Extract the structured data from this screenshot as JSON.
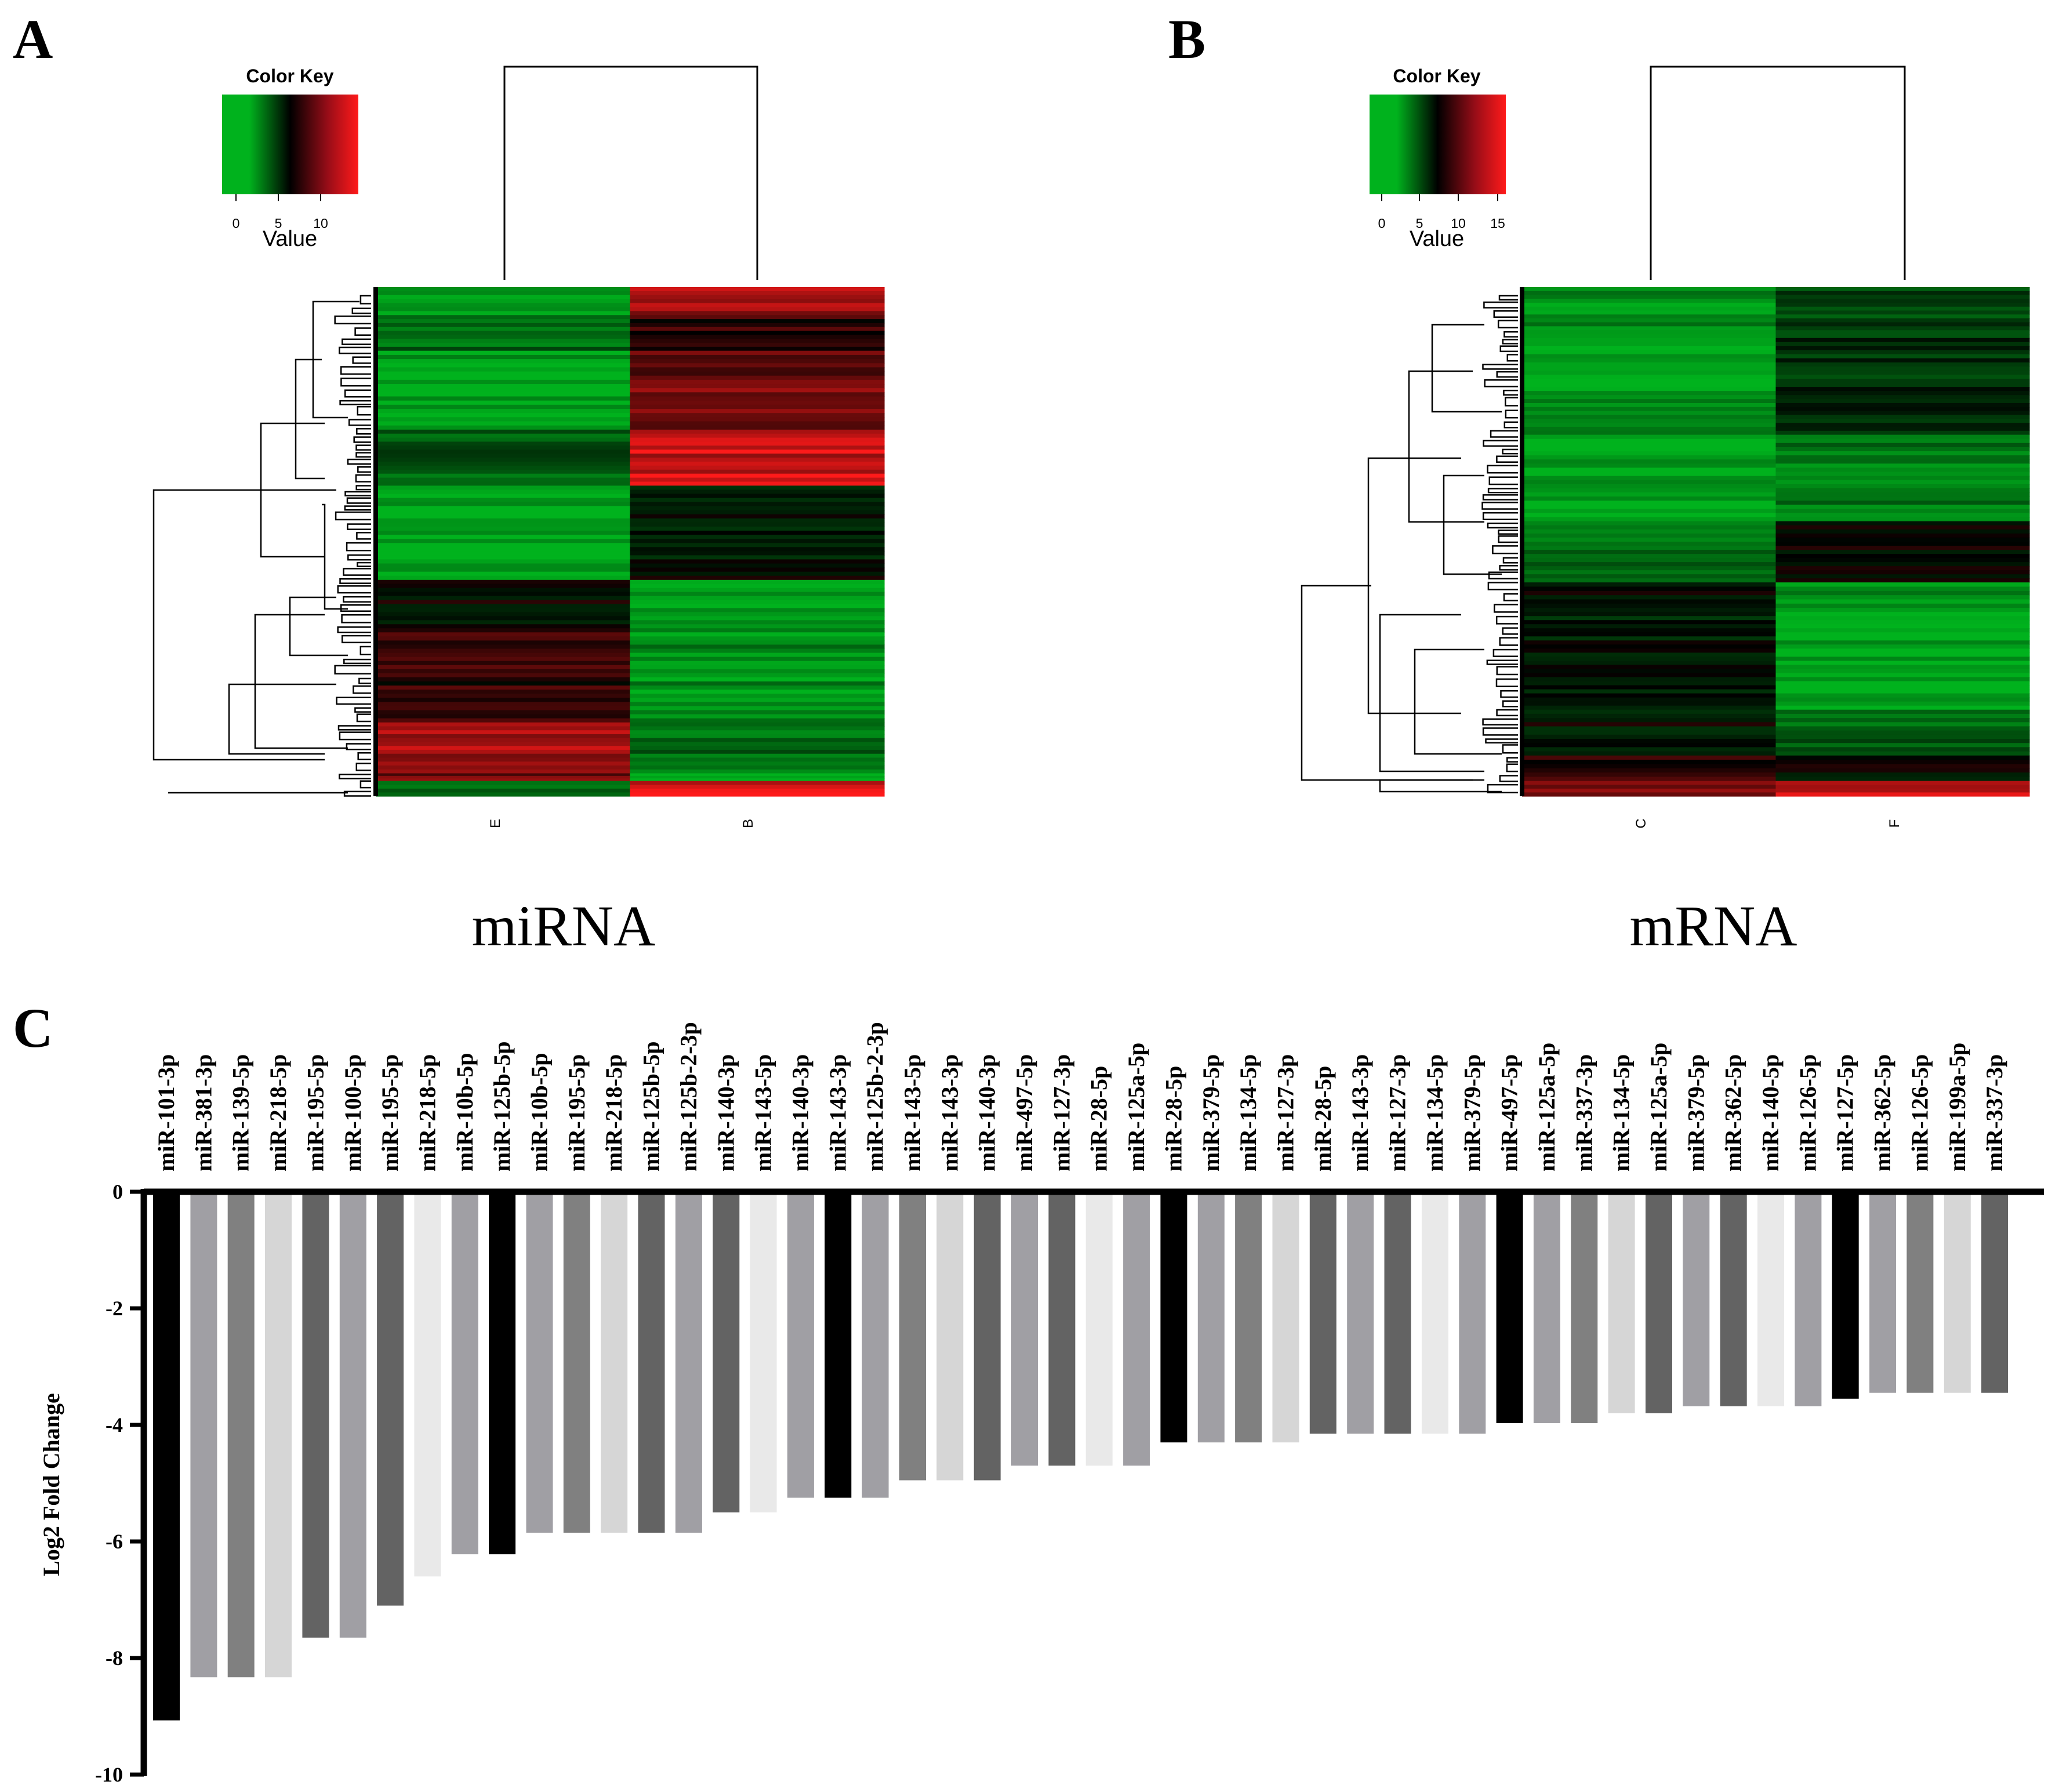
{
  "panels": {
    "a": {
      "letter": "A",
      "caption": "miRNA",
      "color_key": {
        "title": "Color Key",
        "xlabel": "Value",
        "ticks": [
          "0",
          "5",
          "10"
        ]
      },
      "columns": [
        "E",
        "B"
      ]
    },
    "b": {
      "letter": "B",
      "caption": "mRNA",
      "color_key": {
        "title": "Color Key",
        "xlabel": "Value",
        "ticks": [
          "0",
          "5",
          "10",
          "15"
        ]
      },
      "columns": [
        "C",
        "F"
      ]
    },
    "c": {
      "letter": "C"
    }
  },
  "colors": {
    "heat_low": "#00b21d",
    "heat_mid": "#000000",
    "heat_high": "#ff1a1a",
    "bar_shades": [
      "#000000",
      "#a09fa4",
      "#808080",
      "#d6d6d6",
      "#636363",
      "#e9e9e9"
    ]
  },
  "chart_data": [
    {
      "type": "heatmap",
      "panel": "A",
      "columns": [
        "E",
        "B"
      ],
      "color_scale": {
        "min": 0,
        "max": 14,
        "low": "#00b21d",
        "mid": "#000000",
        "high": "#ff1a1a"
      },
      "cluster_blocks": [
        {
          "fraction": 0.055,
          "values": [
            1.5,
            11.5
          ]
        },
        {
          "fraction": 0.07,
          "values": [
            3.0,
            8.0
          ]
        },
        {
          "fraction": 0.155,
          "values": [
            0.5,
            10.0
          ]
        },
        {
          "fraction": 0.11,
          "values": [
            3.5,
            12.5
          ]
        },
        {
          "fraction": 0.185,
          "values": [
            0.5,
            6.5
          ]
        },
        {
          "fraction": 0.095,
          "values": [
            7.0,
            0.5
          ]
        },
        {
          "fraction": 0.185,
          "values": [
            8.0,
            1.5
          ]
        },
        {
          "fraction": 0.1,
          "values": [
            11.5,
            3.0
          ]
        },
        {
          "fraction": 0.015,
          "values": [
            10.0,
            0.5
          ]
        },
        {
          "fraction": 0.03,
          "values": [
            3.0,
            12.5
          ]
        }
      ]
    },
    {
      "type": "heatmap",
      "panel": "B",
      "columns": [
        "C",
        "F"
      ],
      "color_scale": {
        "min": 0,
        "max": 15,
        "low": "#00b21d",
        "mid": "#000000",
        "high": "#ff1a1a"
      },
      "cluster_blocks": [
        {
          "fraction": 0.1,
          "values": [
            1.5,
            4.5
          ]
        },
        {
          "fraction": 0.12,
          "values": [
            0.5,
            5.5
          ]
        },
        {
          "fraction": 0.07,
          "values": [
            2.5,
            6.5
          ]
        },
        {
          "fraction": 0.17,
          "values": [
            0.5,
            2.5
          ]
        },
        {
          "fraction": 0.12,
          "values": [
            3.0,
            7.5
          ]
        },
        {
          "fraction": 0.05,
          "values": [
            7.5,
            2.0
          ]
        },
        {
          "fraction": 0.2,
          "values": [
            6.5,
            0.5
          ]
        },
        {
          "fraction": 0.09,
          "values": [
            7.0,
            3.5
          ]
        },
        {
          "fraction": 0.05,
          "values": [
            9.0,
            7.0
          ]
        },
        {
          "fraction": 0.03,
          "values": [
            11.0,
            13.0
          ]
        }
      ]
    },
    {
      "type": "bar",
      "panel": "C",
      "orientation": "vertical",
      "ylabel": "Log2 Fold Change",
      "ylim": [
        -10,
        0
      ],
      "yticks": [
        0,
        -2,
        -4,
        -6,
        -8,
        -10
      ],
      "grid": false,
      "categories": [
        "miR-101-3p",
        "miR-381-3p",
        "miR-139-5p",
        "miR-218-5p",
        "miR-195-5p",
        "miR-100-5p",
        "miR-195-5p",
        "miR-218-5p",
        "miR-10b-5p",
        "miR-125b-5p",
        "miR-10b-5p",
        "miR-195-5p",
        "miR-218-5p",
        "miR-125b-5p",
        "miR-125b-2-3p",
        "miR-140-3p",
        "miR-143-5p",
        "miR-140-3p",
        "miR-143-3p",
        "miR-125b-2-3p",
        "miR-143-5p",
        "miR-143-3p",
        "miR-140-3p",
        "miR-497-5p",
        "miR-127-3p",
        "miR-28-5p",
        "miR-125a-5p",
        "miR-28-5p",
        "miR-379-5p",
        "miR-134-5p",
        "miR-127-3p",
        "miR-28-5p",
        "miR-143-3p",
        "miR-127-3p",
        "miR-134-5p",
        "miR-379-5p",
        "miR-497-5p",
        "miR-125a-5p",
        "miR-337-3p",
        "miR-134-5p",
        "miR-125a-5p",
        "miR-379-5p",
        "miR-362-5p",
        "miR-140-5p",
        "miR-126-5p",
        "miR-127-5p",
        "miR-362-5p",
        "miR-126-5p",
        "miR-199a-5p",
        "miR-337-3p"
      ],
      "values": [
        -9.07,
        -8.33,
        -8.33,
        -8.33,
        -7.65,
        -7.65,
        -7.1,
        -6.6,
        -6.22,
        -6.22,
        -5.85,
        -5.85,
        -5.85,
        -5.85,
        -5.85,
        -5.5,
        -5.5,
        -5.25,
        -5.25,
        -5.25,
        -4.95,
        -4.95,
        -4.95,
        -4.7,
        -4.7,
        -4.7,
        -4.7,
        -4.3,
        -4.3,
        -4.3,
        -4.3,
        -4.15,
        -4.15,
        -4.15,
        -4.15,
        -4.15,
        -3.97,
        -3.97,
        -3.97,
        -3.8,
        -3.8,
        -3.68,
        -3.68,
        -3.68,
        -3.68,
        -3.55,
        -3.45,
        -3.45,
        -3.45,
        -3.45
      ],
      "bar_colors": [
        "#000000",
        "#a09fa4",
        "#808080",
        "#d6d6d6",
        "#636363",
        "#a09fa4",
        "#636363",
        "#e9e9e9",
        "#a09fa4",
        "#000000",
        "#a09fa4",
        "#808080",
        "#d6d6d6",
        "#636363",
        "#a09fa4",
        "#636363",
        "#e9e9e9",
        "#a09fa4",
        "#000000",
        "#a09fa4",
        "#808080",
        "#d6d6d6",
        "#636363",
        "#a09fa4",
        "#636363",
        "#e9e9e9",
        "#a09fa4",
        "#000000",
        "#a09fa4",
        "#808080",
        "#d6d6d6",
        "#636363",
        "#a09fa4",
        "#636363",
        "#e9e9e9",
        "#a09fa4",
        "#000000",
        "#a09fa4",
        "#808080",
        "#d6d6d6",
        "#636363",
        "#a09fa4",
        "#636363",
        "#e9e9e9",
        "#a09fa4",
        "#000000",
        "#a09fa4",
        "#808080",
        "#d6d6d6",
        "#636363"
      ]
    }
  ]
}
